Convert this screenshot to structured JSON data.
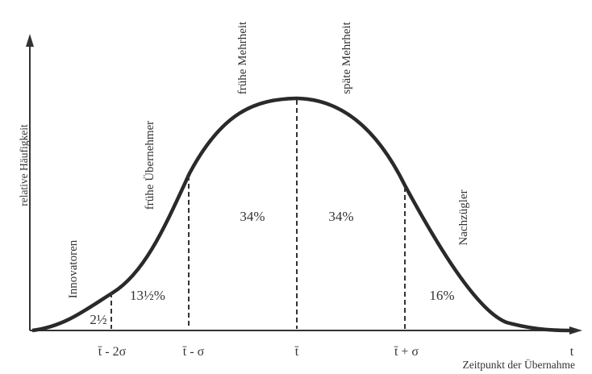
{
  "axes": {
    "y_title": "relative Häufigkeit",
    "x_title": "Zeitpunkt der Übernahme",
    "x_end_label": "t",
    "x_ticks": [
      "t̄ - 2σ",
      "t̄ - σ",
      "t̄",
      "t̄ + σ"
    ]
  },
  "groups": [
    "Innovatoren",
    "frühe Übernehmer",
    "frühe Mehrheit",
    "späte Mehrheit",
    "Nachzügler"
  ],
  "percentages": [
    "2½",
    "13½%",
    "34%",
    "34%",
    "16%"
  ],
  "colors": {
    "curve": "#2a2a2a",
    "text": "#333333"
  }
}
